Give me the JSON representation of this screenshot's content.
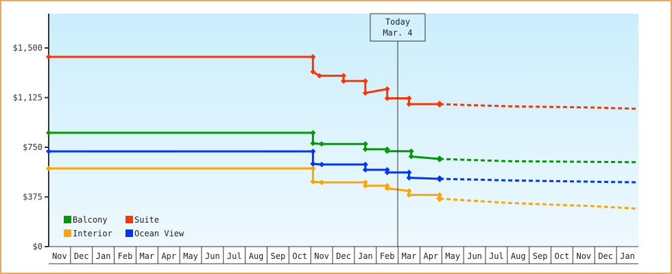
{
  "chart_data": {
    "type": "line",
    "title": "",
    "xlabel": "",
    "ylabel": "",
    "ylim": [
      0,
      1750
    ],
    "y_ticks": [
      "$0",
      "$375",
      "$750",
      "$1,125",
      "$1,500"
    ],
    "x_ticks": [
      "Nov",
      "Dec",
      "Jan",
      "Feb",
      "Mar",
      "Apr",
      "May",
      "Jun",
      "Jul",
      "Aug",
      "Sep",
      "Oct",
      "Nov",
      "Dec",
      "Jan",
      "Feb",
      "Mar",
      "Apr",
      "May",
      "Jun",
      "Jul",
      "Aug",
      "Sep",
      "Oct",
      "Nov",
      "Dec",
      "Jan"
    ],
    "grid": false,
    "legend_position": "lower-left inside",
    "annotation": {
      "line1": "Today",
      "line2": "Mar. 4"
    },
    "series": [
      {
        "name": "Balcony",
        "color": "#009900",
        "history": [
          [
            0,
            859
          ],
          [
            12.1,
            859
          ],
          [
            12.1,
            780
          ],
          [
            12.5,
            775
          ],
          [
            14.5,
            775
          ],
          [
            14.5,
            735
          ],
          [
            15.5,
            735
          ],
          [
            15.5,
            720
          ],
          [
            16.6,
            720
          ],
          [
            16.6,
            680
          ],
          [
            17.9,
            662
          ]
        ],
        "forecast": [
          [
            17.9,
            662
          ],
          [
            21,
            645
          ],
          [
            25,
            640
          ],
          [
            27,
            637
          ]
        ]
      },
      {
        "name": "Suite",
        "color": "#ff3300",
        "history": [
          [
            0,
            1433
          ],
          [
            12.1,
            1433
          ],
          [
            12.1,
            1320
          ],
          [
            12.4,
            1290
          ],
          [
            13.5,
            1290
          ],
          [
            13.5,
            1250
          ],
          [
            14.5,
            1250
          ],
          [
            14.5,
            1160
          ],
          [
            15.5,
            1190
          ],
          [
            15.5,
            1120
          ],
          [
            16.5,
            1120
          ],
          [
            16.5,
            1076
          ],
          [
            17.9,
            1076
          ]
        ],
        "forecast": [
          [
            17.9,
            1076
          ],
          [
            21,
            1060
          ],
          [
            25,
            1050
          ],
          [
            27,
            1040
          ]
        ]
      },
      {
        "name": "Interior",
        "color": "#ffa500",
        "history": [
          [
            0,
            590
          ],
          [
            12.1,
            590
          ],
          [
            12.1,
            490
          ],
          [
            12.5,
            485
          ],
          [
            14.5,
            485
          ],
          [
            14.5,
            460
          ],
          [
            15.5,
            460
          ],
          [
            15.5,
            440
          ],
          [
            16.5,
            420
          ],
          [
            16.5,
            390
          ],
          [
            17.9,
            390
          ],
          [
            17.9,
            362
          ]
        ],
        "forecast": [
          [
            17.9,
            362
          ],
          [
            21,
            330
          ],
          [
            25,
            305
          ],
          [
            27,
            286
          ]
        ]
      },
      {
        "name": "Ocean View",
        "color": "#0033ff",
        "history": [
          [
            0,
            719
          ],
          [
            12.1,
            719
          ],
          [
            12.1,
            625
          ],
          [
            12.5,
            620
          ],
          [
            14.5,
            620
          ],
          [
            14.5,
            580
          ],
          [
            15.5,
            580
          ],
          [
            15.5,
            560
          ],
          [
            16.5,
            560
          ],
          [
            16.5,
            520
          ],
          [
            17.9,
            512
          ]
        ],
        "forecast": [
          [
            17.9,
            512
          ],
          [
            21,
            500
          ],
          [
            25,
            490
          ],
          [
            27,
            485
          ]
        ]
      }
    ]
  },
  "legend": {
    "items": [
      {
        "label": "Balcony",
        "color": "#009900"
      },
      {
        "label": "Suite",
        "color": "#ff3300"
      },
      {
        "label": "Interior",
        "color": "#ffa500"
      },
      {
        "label": "Ocean View",
        "color": "#0033ff"
      }
    ]
  },
  "today": {
    "line1": "Today",
    "line2": "Mar. 4"
  },
  "colors": {
    "frame": "#e8a860",
    "plot_top": "#cbeefc",
    "plot_bottom": "#eef9fe",
    "axis": "#333333"
  }
}
